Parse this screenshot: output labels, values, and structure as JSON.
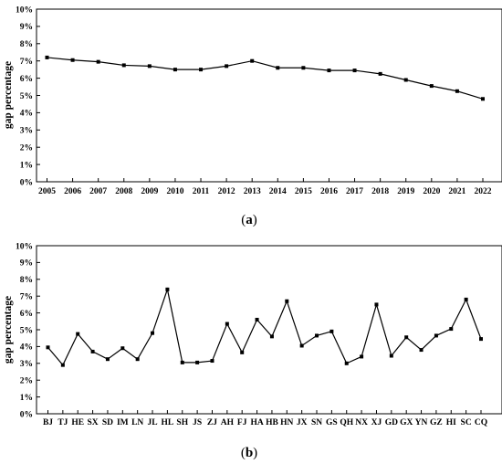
{
  "chart_data": [
    {
      "type": "line",
      "panel_label": "a",
      "title": "",
      "xlabel": "",
      "ylabel": "gap percentage",
      "ylim": [
        0,
        10
      ],
      "yticks": [
        "0%",
        "1%",
        "2%",
        "3%",
        "4%",
        "5%",
        "6%",
        "7%",
        "8%",
        "9%",
        "10%"
      ],
      "grid": false,
      "categories": [
        "2005",
        "2006",
        "2007",
        "2008",
        "2009",
        "2010",
        "2011",
        "2012",
        "2013",
        "2014",
        "2015",
        "2016",
        "2017",
        "2018",
        "2019",
        "2020",
        "2021",
        "2022"
      ],
      "series": [
        {
          "values": [
            7.2,
            7.05,
            6.95,
            6.75,
            6.7,
            6.5,
            6.5,
            6.7,
            7.0,
            6.6,
            6.6,
            6.45,
            6.45,
            6.25,
            5.9,
            5.55,
            5.25,
            4.8
          ],
          "color": "#000000",
          "marker": "square"
        }
      ]
    },
    {
      "type": "line",
      "panel_label": "b",
      "title": "",
      "xlabel": "",
      "ylabel": "gap percentage",
      "ylim": [
        0,
        10
      ],
      "yticks": [
        "0%",
        "1%",
        "2%",
        "3%",
        "4%",
        "5%",
        "6%",
        "7%",
        "8%",
        "9%",
        "10%"
      ],
      "grid": false,
      "categories": [
        "BJ",
        "TJ",
        "HE",
        "SX",
        "SD",
        "IM",
        "LN",
        "JL",
        "HL",
        "SH",
        "JS",
        "ZJ",
        "AH",
        "FJ",
        "HA",
        "HB",
        "HN",
        "JX",
        "SN",
        "GS",
        "QH",
        "NX",
        "XJ",
        "GD",
        "GX",
        "YN",
        "GZ",
        "HI",
        "SC",
        "CQ"
      ],
      "series": [
        {
          "values": [
            3.95,
            2.9,
            4.75,
            3.7,
            3.25,
            3.9,
            3.25,
            4.8,
            7.4,
            3.05,
            3.05,
            3.15,
            5.35,
            3.65,
            5.6,
            4.6,
            6.7,
            4.05,
            4.65,
            4.9,
            3.0,
            3.4,
            6.5,
            3.45,
            4.55,
            3.8,
            4.65,
            5.05,
            6.8,
            4.45
          ],
          "color": "#000000",
          "marker": "square"
        }
      ]
    }
  ]
}
